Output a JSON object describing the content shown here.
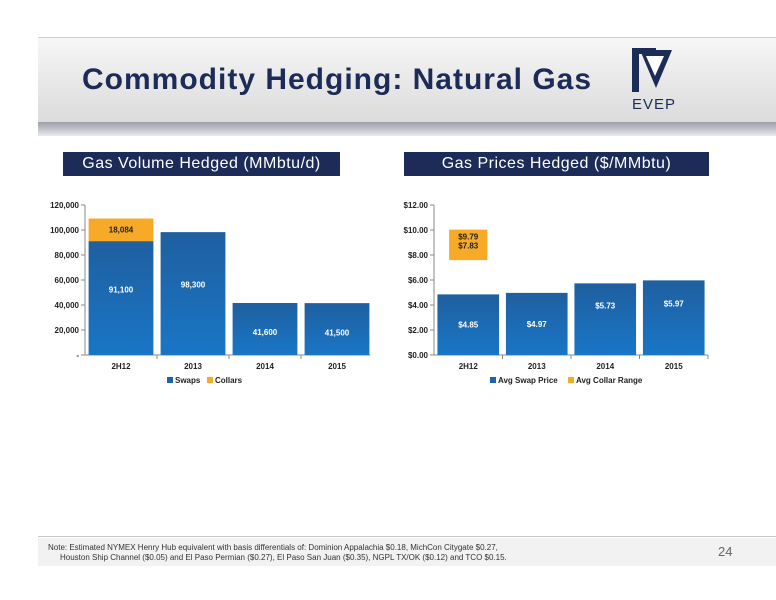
{
  "title": "Commodity Hedging: Natural Gas",
  "logo": {
    "text": "EVEP",
    "color": "#1c2b57"
  },
  "panels": {
    "left_title": "Gas Volume Hedged (MMbtu/d)",
    "right_title": "Gas Prices Hedged ($/MMbtu)"
  },
  "colors": {
    "swap": "#1565b0",
    "collar": "#f7a928",
    "navy": "#1c2b57"
  },
  "chart_data": [
    {
      "type": "bar",
      "stacked": true,
      "categories": [
        "2H12",
        "2013",
        "2014",
        "2015"
      ],
      "series": [
        {
          "name": "Swaps",
          "values": [
            91100,
            98300,
            41600,
            41500
          ],
          "labels": [
            "91,100",
            "98,300",
            "41,600",
            "41,500"
          ]
        },
        {
          "name": "Collars",
          "values": [
            18084,
            0,
            0,
            0
          ],
          "labels": [
            "18,084",
            "",
            "",
            ""
          ]
        }
      ],
      "ylim": [
        0,
        120000
      ],
      "yticks": [
        0,
        20000,
        40000,
        60000,
        80000,
        100000,
        120000
      ],
      "ytick_labels": [
        "-",
        "20,000",
        "40,000",
        "60,000",
        "80,000",
        "100,000",
        "120,000"
      ],
      "legend": "bottom",
      "grid": false
    },
    {
      "type": "bar",
      "categories": [
        "2H12",
        "2013",
        "2014",
        "2015"
      ],
      "series": [
        {
          "name": "Avg Swap Price",
          "values": [
            4.85,
            4.97,
            5.73,
            5.97
          ],
          "labels": [
            "$4.85",
            "$4.97",
            "$5.73",
            "$5.97"
          ]
        },
        {
          "name": "Avg Collar Range",
          "values": [
            [
              7.83,
              9.79
            ],
            null,
            null,
            null
          ],
          "labels": [
            "$9.79",
            "$7.83"
          ]
        }
      ],
      "ylim": [
        0,
        12
      ],
      "yticks": [
        0,
        2,
        4,
        6,
        8,
        10,
        12
      ],
      "ytick_labels": [
        "$0.00",
        "$2.00",
        "$4.00",
        "$6.00",
        "$8.00",
        "$10.00",
        "$12.00"
      ],
      "legend": "bottom",
      "grid": false
    }
  ],
  "footer": {
    "note_line1": "Note: Estimated NYMEX Henry Hub equivalent with basis differentials of: Dominion Appalachia $0.18, MichCon Citygate $0.27,",
    "note_line2": "Houston Ship Channel ($0.05) and El Paso Permian ($0.27), El Paso San Juan ($0.35), NGPL TX/OK ($0.12) and TCO $0.15.",
    "page_number": "24"
  }
}
